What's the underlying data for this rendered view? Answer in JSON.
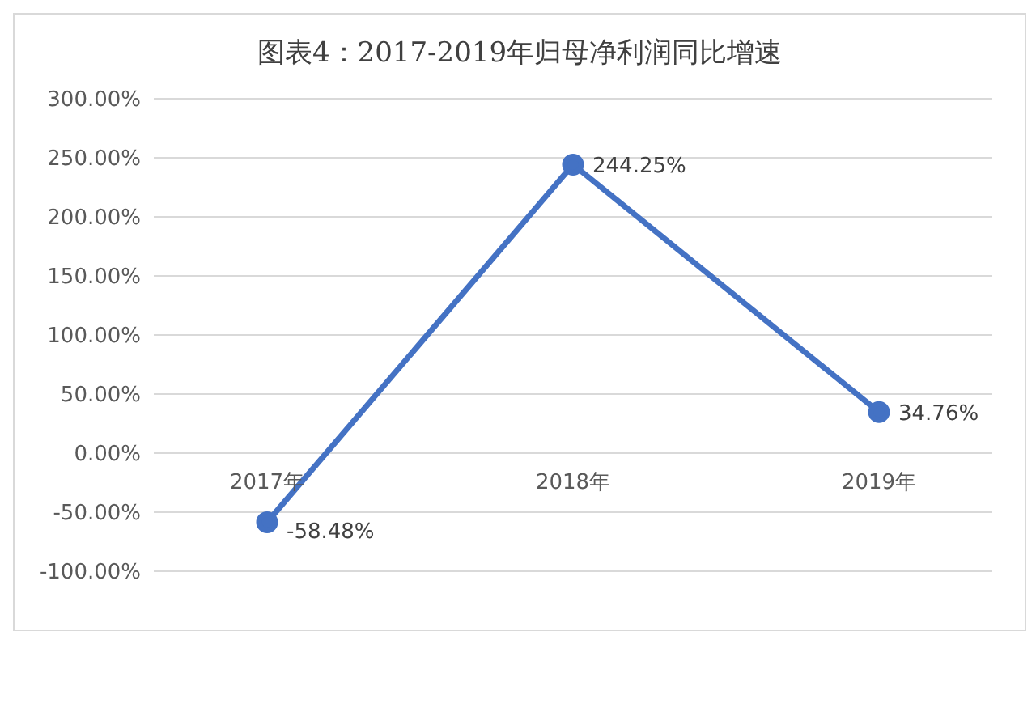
{
  "chart_data": {
    "type": "line",
    "title": "图表4：2017-2019年归母净利润同比增速",
    "categories": [
      "2017年",
      "2018年",
      "2019年"
    ],
    "series": [
      {
        "color": "#4472c4",
        "values": [
          -58.48,
          244.25,
          34.76
        ],
        "value_labels": [
          "-58.48%",
          "244.25%",
          "34.76%"
        ]
      }
    ],
    "ylim": [
      -100,
      300
    ],
    "yticks": [
      {
        "value": -100,
        "label": "-100.00%"
      },
      {
        "value": -50,
        "label": "-50.00%"
      },
      {
        "value": 0,
        "label": "0.00%"
      },
      {
        "value": 50,
        "label": "50.00%"
      },
      {
        "value": 100,
        "label": "100.00%"
      },
      {
        "value": 150,
        "label": "150.00%"
      },
      {
        "value": 200,
        "label": "200.00%"
      },
      {
        "value": 250,
        "label": "250.00%"
      },
      {
        "value": 300,
        "label": "300.00%"
      }
    ],
    "grid": "y",
    "marker": "circle",
    "line_style": "solid",
    "legend": false
  }
}
